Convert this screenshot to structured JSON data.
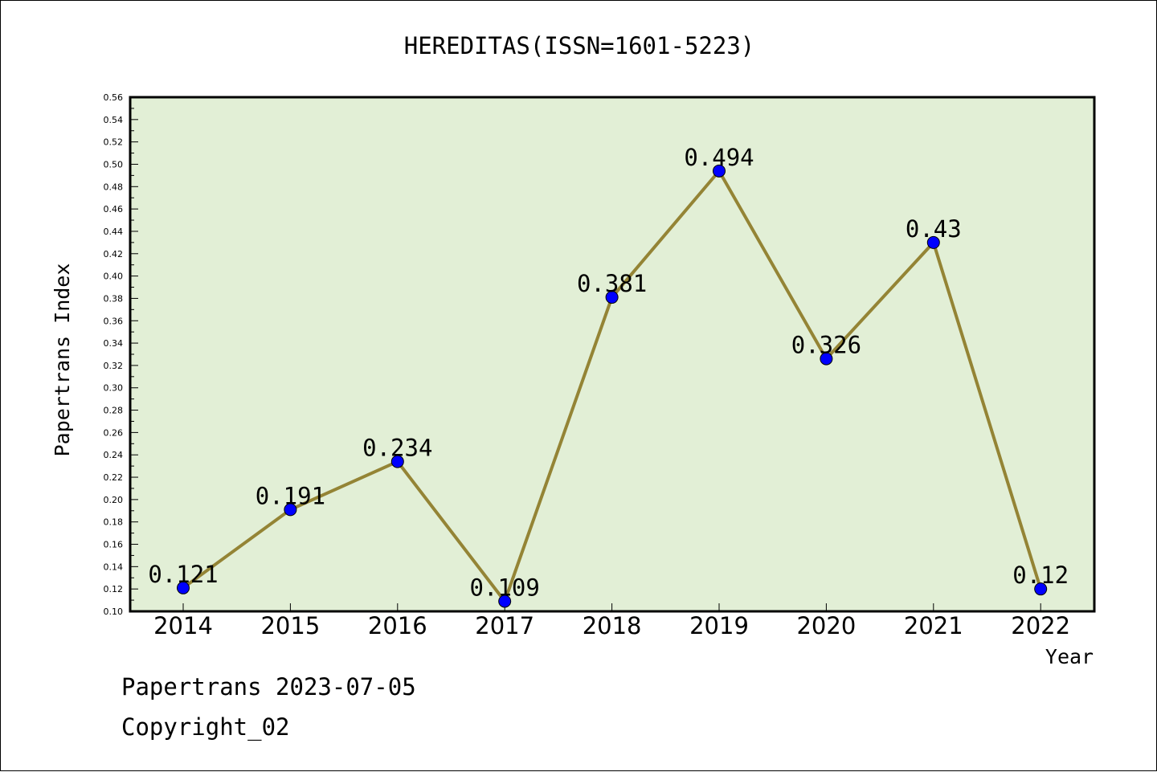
{
  "chart_data": {
    "type": "line",
    "title": "HEREDITAS(ISSN=1601-5223)",
    "xlabel": "Year",
    "ylabel": "Papertrans Index",
    "categories": [
      "2014",
      "2015",
      "2016",
      "2017",
      "2018",
      "2019",
      "2020",
      "2021",
      "2022"
    ],
    "series": [
      {
        "values": [
          0.121,
          0.191,
          0.234,
          0.109,
          0.381,
          0.494,
          0.326,
          0.43,
          0.12
        ],
        "labels": [
          "0.121",
          "0.191",
          "0.234",
          "0.109",
          "0.381",
          "0.494",
          "0.326",
          "0.43",
          "0.12"
        ]
      }
    ],
    "ylim": [
      0.1,
      0.56
    ],
    "yticks": [
      "0.10",
      "0.12",
      "0.14",
      "0.16",
      "0.18",
      "0.20",
      "0.22",
      "0.24",
      "0.26",
      "0.28",
      "0.30",
      "0.32",
      "0.34",
      "0.36",
      "0.38",
      "0.40",
      "0.42",
      "0.44",
      "0.46",
      "0.48",
      "0.50",
      "0.52",
      "0.54",
      "0.56"
    ],
    "grid": false,
    "colors": {
      "plot_background": "#e2efd6",
      "line": "#948435",
      "marker": "#0000ff"
    }
  },
  "footer": {
    "line1": "Papertrans 2023-07-05",
    "line2": "Copyright_02"
  }
}
